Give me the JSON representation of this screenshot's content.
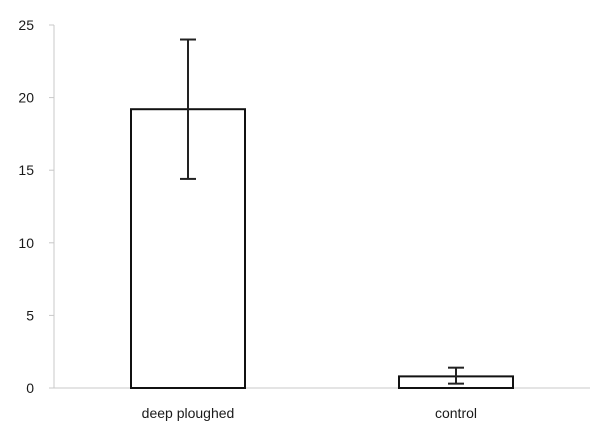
{
  "chart_data": {
    "type": "bar",
    "title": "",
    "xlabel": "",
    "ylabel": "",
    "categories": [
      "deep ploughed",
      "control"
    ],
    "values": [
      19.2,
      0.8
    ],
    "error": {
      "lower": [
        14.4,
        0.3
      ],
      "upper": [
        24.0,
        1.4
      ]
    },
    "ylim": [
      0,
      25
    ],
    "yticks": [
      0,
      5,
      10,
      15,
      20,
      25
    ],
    "grid": false,
    "legend": "none",
    "colors": {
      "bar_fill": "#ffffff",
      "bar_stroke": "#111111",
      "axis": "#c8c8c8",
      "error_bar": "#222222"
    }
  }
}
